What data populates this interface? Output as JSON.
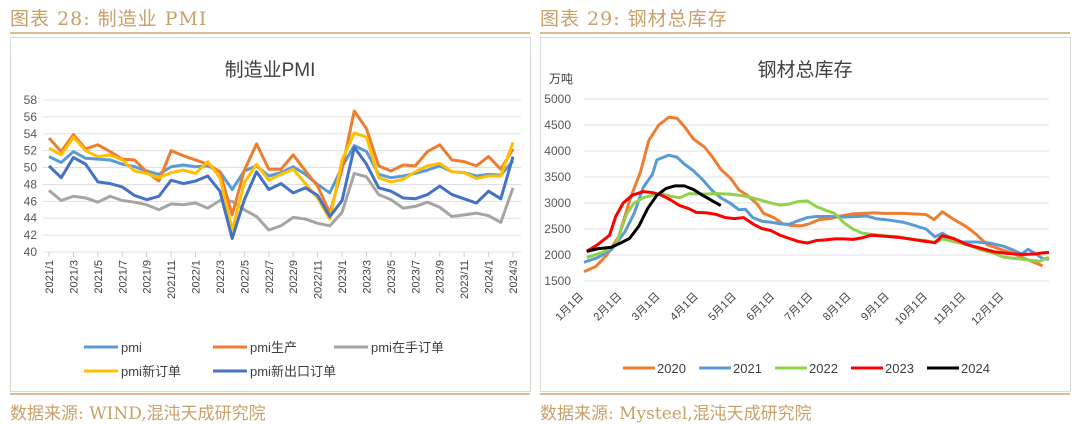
{
  "left": {
    "header": "图表 28:  制造业 PMI",
    "source": "数据来源:  WIND,混沌天成研究院"
  },
  "right": {
    "header": "图表 29:    钢材总库存",
    "source": "数据来源:  Mysteel,混沌天成研究院"
  },
  "chart_data": [
    {
      "type": "line",
      "title": "制造业PMI",
      "ylim": [
        40,
        58
      ],
      "yticks": [
        40,
        42,
        44,
        46,
        48,
        50,
        52,
        54,
        56,
        58
      ],
      "grid": true,
      "legend": "bottom",
      "xlabels": [
        "2021/1",
        "2021/3",
        "2021/5",
        "2021/7",
        "2021/9",
        "2021/11",
        "2022/1",
        "2022/3",
        "2022/5",
        "2022/7",
        "2022/9",
        "2022/11",
        "2023/1",
        "2023/3",
        "2023/5",
        "2023/7",
        "2023/9",
        "2023/11",
        "2024/1",
        "2024/3"
      ],
      "series": [
        {
          "name": "pmi",
          "color": "#5b9bd5",
          "values": [
            51.3,
            50.6,
            51.9,
            51.1,
            51.0,
            50.9,
            50.4,
            50.1,
            49.6,
            49.2,
            50.1,
            50.3,
            50.1,
            50.2,
            49.5,
            47.4,
            49.6,
            50.2,
            49.0,
            49.4,
            50.1,
            49.2,
            48.0,
            47.0,
            50.1,
            52.6,
            51.9,
            49.2,
            48.8,
            49.0,
            49.3,
            49.7,
            50.2,
            49.5,
            49.4,
            49.0,
            49.2,
            49.1,
            50.8
          ]
        },
        {
          "name": "pmi生产",
          "color": "#ed7d31",
          "values": [
            53.5,
            51.9,
            53.9,
            52.2,
            52.7,
            51.9,
            51.0,
            50.9,
            49.5,
            48.4,
            52.0,
            51.4,
            50.9,
            50.4,
            49.5,
            44.4,
            49.7,
            52.8,
            49.8,
            49.8,
            51.5,
            49.6,
            47.8,
            44.6,
            49.8,
            56.7,
            54.6,
            50.2,
            49.6,
            50.3,
            50.2,
            51.9,
            52.7,
            50.9,
            50.7,
            50.2,
            51.3,
            49.8,
            52.2
          ]
        },
        {
          "name": "pmi在手订单",
          "color": "#a5a5a5",
          "values": [
            47.3,
            46.1,
            46.6,
            46.4,
            45.9,
            46.6,
            46.1,
            45.9,
            45.6,
            45.0,
            45.7,
            45.6,
            45.8,
            45.2,
            46.1,
            46.0,
            45.0,
            44.2,
            42.6,
            43.1,
            44.1,
            43.9,
            43.4,
            43.1,
            44.7,
            49.3,
            48.9,
            46.8,
            46.2,
            45.2,
            45.4,
            45.9,
            45.3,
            44.2,
            44.4,
            44.6,
            44.3,
            43.5,
            47.6
          ]
        },
        {
          "name": "pmi新订单",
          "color": "#ffc000",
          "values": [
            52.3,
            51.5,
            53.6,
            52.0,
            51.3,
            51.5,
            50.9,
            49.6,
            49.3,
            48.8,
            49.4,
            49.7,
            49.3,
            50.7,
            48.8,
            42.6,
            48.2,
            50.4,
            48.5,
            49.2,
            49.8,
            48.1,
            46.4,
            43.9,
            50.9,
            54.1,
            53.6,
            48.8,
            48.3,
            48.6,
            49.5,
            50.2,
            50.5,
            49.5,
            49.4,
            48.7,
            49.0,
            49.0,
            53.0
          ]
        },
        {
          "name": "pmi新出口订单",
          "color": "#4472c4",
          "values": [
            50.2,
            48.8,
            51.2,
            50.4,
            48.3,
            48.1,
            47.7,
            46.7,
            46.2,
            46.6,
            48.5,
            48.1,
            48.4,
            49.0,
            47.2,
            41.6,
            46.2,
            49.5,
            47.4,
            48.1,
            47.0,
            47.6,
            46.7,
            44.2,
            46.1,
            52.4,
            50.4,
            47.6,
            47.2,
            46.4,
            46.3,
            46.8,
            47.8,
            46.8,
            46.3,
            45.8,
            47.2,
            46.3,
            51.3
          ]
        }
      ]
    },
    {
      "type": "line",
      "title": "钢材总库存",
      "ylabel": "万吨",
      "ylim": [
        1500,
        5000
      ],
      "yticks": [
        1500,
        2000,
        2500,
        3000,
        3500,
        4000,
        4500,
        5000
      ],
      "grid": true,
      "legend": "bottom",
      "xunit": "week",
      "xlabels": [
        "1月1日",
        "2月1日",
        "3月1日",
        "4月1日",
        "5月1日",
        "6月1日",
        "7月1日",
        "8月1日",
        "9月1日",
        "10月1日",
        "11月1日",
        "12月1日"
      ],
      "series": [
        {
          "name": "2020",
          "color": "#ed7d31",
          "points": [
            [
              0,
              1680
            ],
            [
              1.3,
              1780
            ],
            [
              2.5,
              2000
            ],
            [
              3.8,
              2350
            ],
            [
              5.1,
              3100
            ],
            [
              6.2,
              3600
            ],
            [
              7.1,
              4200
            ],
            [
              8.2,
              4500
            ],
            [
              9.3,
              4650
            ],
            [
              10.2,
              4630
            ],
            [
              11.1,
              4450
            ],
            [
              12,
              4230
            ],
            [
              13.2,
              4080
            ],
            [
              14.1,
              3880
            ],
            [
              15,
              3650
            ],
            [
              16.1,
              3470
            ],
            [
              17,
              3250
            ],
            [
              17.9,
              3150
            ],
            [
              19,
              2980
            ],
            [
              19.7,
              2800
            ],
            [
              20.8,
              2720
            ],
            [
              21.8,
              2600
            ],
            [
              22.7,
              2570
            ],
            [
              23.8,
              2560
            ],
            [
              24.7,
              2600
            ],
            [
              25.8,
              2680
            ],
            [
              26.9,
              2700
            ],
            [
              28.2,
              2750
            ],
            [
              29.4,
              2790
            ],
            [
              30.5,
              2800
            ],
            [
              31.8,
              2810
            ],
            [
              32.9,
              2800
            ],
            [
              34,
              2800
            ],
            [
              35.1,
              2800
            ],
            [
              37.5,
              2780
            ],
            [
              38.4,
              2680
            ],
            [
              39.3,
              2830
            ],
            [
              40.6,
              2680
            ],
            [
              41.9,
              2550
            ],
            [
              43,
              2400
            ],
            [
              44.2,
              2200
            ],
            [
              45.5,
              2120
            ],
            [
              46.8,
              2050
            ],
            [
              48.1,
              1950
            ],
            [
              49.2,
              1870
            ],
            [
              50.3,
              1790
            ]
          ]
        },
        {
          "name": "2021",
          "color": "#5b9bd5",
          "points": [
            [
              0,
              1860
            ],
            [
              1.5,
              1950
            ],
            [
              3,
              2100
            ],
            [
              4.5,
              2450
            ],
            [
              5.5,
              2800
            ],
            [
              6.5,
              3300
            ],
            [
              7.5,
              3550
            ],
            [
              8,
              3830
            ],
            [
              9.3,
              3920
            ],
            [
              10.2,
              3880
            ],
            [
              11,
              3750
            ],
            [
              12,
              3620
            ],
            [
              13,
              3450
            ],
            [
              14,
              3250
            ],
            [
              15,
              3100
            ],
            [
              16,
              3000
            ],
            [
              17,
              2870
            ],
            [
              17.7,
              2880
            ],
            [
              18.5,
              2720
            ],
            [
              19.5,
              2650
            ],
            [
              20.5,
              2630
            ],
            [
              21.5,
              2600
            ],
            [
              22.5,
              2590
            ],
            [
              23.5,
              2660
            ],
            [
              24.5,
              2720
            ],
            [
              25.5,
              2740
            ],
            [
              27,
              2740
            ],
            [
              28.5,
              2730
            ],
            [
              30,
              2740
            ],
            [
              31,
              2750
            ],
            [
              32,
              2700
            ],
            [
              33.5,
              2670
            ],
            [
              35,
              2630
            ],
            [
              36,
              2580
            ],
            [
              37.5,
              2500
            ],
            [
              38.5,
              2350
            ],
            [
              39.3,
              2420
            ],
            [
              40.5,
              2300
            ],
            [
              41.5,
              2250
            ],
            [
              43,
              2250
            ],
            [
              44.5,
              2230
            ],
            [
              46,
              2170
            ],
            [
              47,
              2100
            ],
            [
              48,
              2020
            ],
            [
              48.7,
              2110
            ],
            [
              49.5,
              2030
            ],
            [
              50.3,
              1930
            ],
            [
              51,
              1920
            ]
          ]
        },
        {
          "name": "2022",
          "color": "#92d050",
          "points": [
            [
              0.3,
              1950
            ],
            [
              2,
              2050
            ],
            [
              3.5,
              2200
            ],
            [
              4.7,
              2800
            ],
            [
              5.5,
              3000
            ],
            [
              6.5,
              3100
            ],
            [
              7.5,
              3150
            ],
            [
              8.5,
              3180
            ],
            [
              9.5,
              3130
            ],
            [
              10.5,
              3100
            ],
            [
              11.5,
              3180
            ],
            [
              13,
              3170
            ],
            [
              14.5,
              3180
            ],
            [
              16,
              3170
            ],
            [
              17,
              3150
            ],
            [
              18,
              3120
            ],
            [
              19.5,
              3050
            ],
            [
              20.5,
              3000
            ],
            [
              21.5,
              2960
            ],
            [
              22.5,
              2980
            ],
            [
              23.5,
              3030
            ],
            [
              24.5,
              3040
            ],
            [
              25.5,
              2930
            ],
            [
              26.5,
              2860
            ],
            [
              27.5,
              2800
            ],
            [
              28.5,
              2620
            ],
            [
              29.5,
              2500
            ],
            [
              30.5,
              2420
            ],
            [
              31.5,
              2400
            ],
            [
              33,
              2370
            ],
            [
              34.5,
              2350
            ],
            [
              36,
              2300
            ],
            [
              37.5,
              2280
            ],
            [
              38.5,
              2230
            ],
            [
              39.3,
              2310
            ],
            [
              40.5,
              2260
            ],
            [
              42,
              2200
            ],
            [
              43.5,
              2100
            ],
            [
              45,
              2030
            ],
            [
              46,
              1960
            ],
            [
              47.5,
              1930
            ],
            [
              49,
              1900
            ],
            [
              50,
              1880
            ],
            [
              51,
              1960
            ]
          ]
        },
        {
          "name": "2023",
          "color": "#ff0000",
          "points": [
            [
              0.3,
              2070
            ],
            [
              1.5,
              2200
            ],
            [
              2.8,
              2380
            ],
            [
              3.5,
              2750
            ],
            [
              4.3,
              3000
            ],
            [
              5.3,
              3150
            ],
            [
              6.5,
              3220
            ],
            [
              7.5,
              3200
            ],
            [
              8.5,
              3150
            ],
            [
              9.5,
              3060
            ],
            [
              10.5,
              2950
            ],
            [
              11.5,
              2890
            ],
            [
              12.3,
              2820
            ],
            [
              13.5,
              2810
            ],
            [
              14.5,
              2780
            ],
            [
              15.5,
              2720
            ],
            [
              16.5,
              2700
            ],
            [
              17.5,
              2720
            ],
            [
              18.5,
              2600
            ],
            [
              19.5,
              2510
            ],
            [
              20.5,
              2470
            ],
            [
              21.5,
              2380
            ],
            [
              22.5,
              2320
            ],
            [
              23.5,
              2260
            ],
            [
              24.5,
              2230
            ],
            [
              25.5,
              2280
            ],
            [
              26.5,
              2290
            ],
            [
              27.5,
              2310
            ],
            [
              28.5,
              2310
            ],
            [
              29.5,
              2300
            ],
            [
              30.5,
              2330
            ],
            [
              31.5,
              2380
            ],
            [
              33,
              2360
            ],
            [
              34.5,
              2340
            ],
            [
              36,
              2300
            ],
            [
              37.5,
              2260
            ],
            [
              38.5,
              2240
            ],
            [
              39.3,
              2370
            ],
            [
              40.5,
              2320
            ],
            [
              42,
              2200
            ],
            [
              43.5,
              2130
            ],
            [
              45,
              2060
            ],
            [
              46.5,
              2030
            ],
            [
              48,
              2010
            ],
            [
              49.5,
              2020
            ],
            [
              50.3,
              2040
            ],
            [
              51,
              2050
            ]
          ]
        },
        {
          "name": "2024",
          "color": "#000000",
          "points": [
            [
              0.3,
              2070
            ],
            [
              1.5,
              2120
            ],
            [
              3,
              2150
            ],
            [
              4,
              2230
            ],
            [
              5,
              2320
            ],
            [
              6,
              2550
            ],
            [
              7,
              2900
            ],
            [
              8,
              3150
            ],
            [
              9,
              3280
            ],
            [
              10,
              3330
            ],
            [
              11,
              3330
            ],
            [
              12,
              3260
            ],
            [
              13,
              3150
            ],
            [
              14,
              3050
            ],
            [
              15,
              2950
            ]
          ]
        }
      ]
    }
  ]
}
